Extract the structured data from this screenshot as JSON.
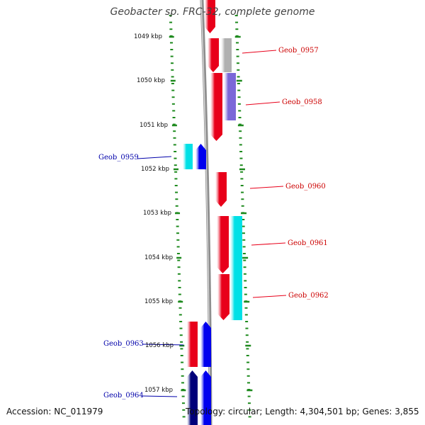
{
  "title": "Geobacter sp. FRC-32, complete genome",
  "footer": {
    "accession": "Accession: NC_011979",
    "summary": "Topology: circular; Length: 4,304,501 bp; Genes: 3,855"
  },
  "kbp_labels": [
    "1049 kbp",
    "1050 kbp",
    "1051 kbp",
    "1052 kbp",
    "1053 kbp",
    "1054 kbp",
    "1055 kbp",
    "1056 kbp",
    "1057 kbp"
  ],
  "gene_labels_right": [
    "Geob_0957",
    "Geob_0958",
    "Geob_0960",
    "Geob_0961",
    "Geob_0962"
  ],
  "gene_labels_left": [
    "Geob_0959",
    "Geob_0963",
    "Geob_0964"
  ],
  "colors": {
    "forward": "#e8001a",
    "reverse": "#0000ee",
    "dark_reverse": "#00007a",
    "cyan": "#00e0e6",
    "purple": "#7b68d8",
    "gray": "#b0b0b0",
    "tick": "#1e8a1e",
    "left_label": "#0000aa",
    "right_label": "#cc0000"
  }
}
